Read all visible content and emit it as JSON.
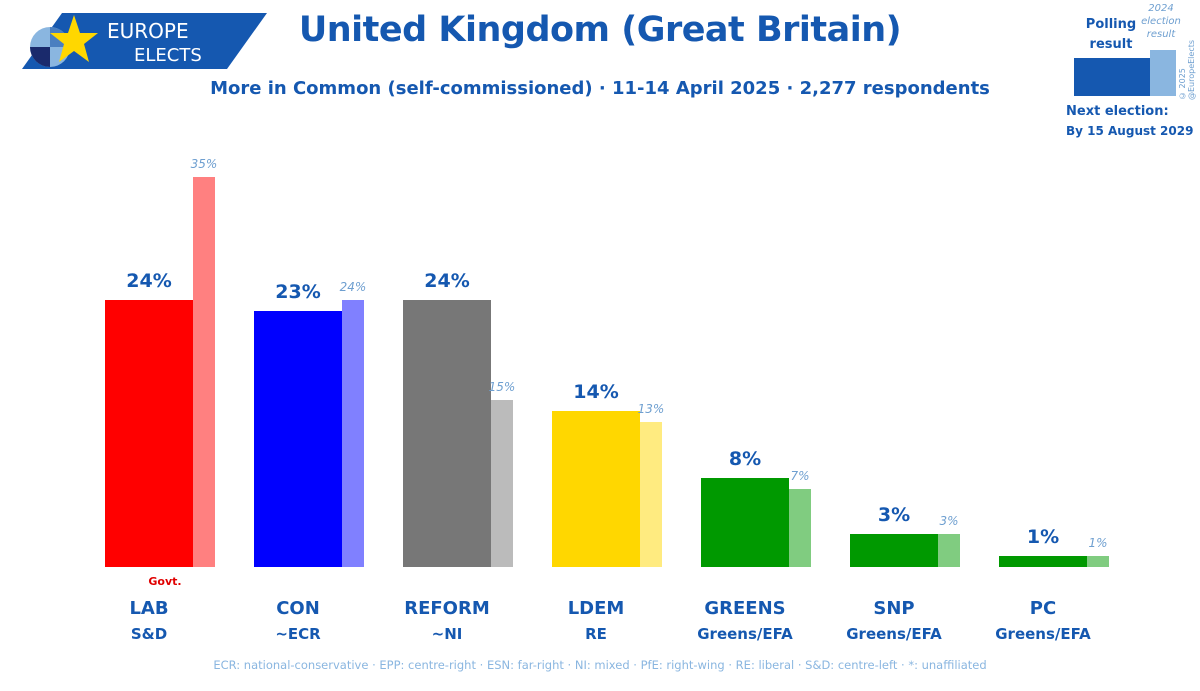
{
  "header": {
    "logo_line1": "EUROPE",
    "logo_line2": "ELECTS",
    "title": "United Kingdom (Great Britain)",
    "subtitle": "More in Common (self-commissioned) · 11-14 April 2025 · 2,277 respondents"
  },
  "legend": {
    "polling_label": "Polling result",
    "election_label": "2024 election result",
    "copyright": "© 2025 @EuropeElects",
    "next_election_label": "Next election:",
    "next_election_date": "By 15 August 2029"
  },
  "chart_data": {
    "type": "bar",
    "categories": [
      "LAB",
      "CON",
      "REFORM",
      "LDEM",
      "GREENS",
      "SNP",
      "PC"
    ],
    "groups": [
      "S&D",
      "~ECR",
      "~NI",
      "RE",
      "Greens/EFA",
      "Greens/EFA",
      "Greens/EFA"
    ],
    "series": [
      {
        "name": "Polling result",
        "values": [
          24,
          23,
          24,
          14,
          8,
          3,
          1
        ]
      },
      {
        "name": "2024 election result",
        "values": [
          35,
          24,
          15,
          13,
          7,
          3,
          1
        ]
      }
    ],
    "colors": [
      "#ff0000",
      "#0000ff",
      "#777777",
      "#ffd700",
      "#009900",
      "#009900",
      "#009900"
    ],
    "prev_colors": [
      "#ff8080",
      "#8080ff",
      "#bbbbbb",
      "#ffeb80",
      "#80cc80",
      "#80cc80",
      "#80cc80"
    ],
    "government_mark": "Govt.",
    "ylim": [
      0,
      35
    ]
  },
  "footer": "ECR: national-conservative · EPP: centre-right · ESN: far-right · NI: mixed · PfE: right-wing · RE: liberal · S&D: centre-left · *: unaffiliated"
}
